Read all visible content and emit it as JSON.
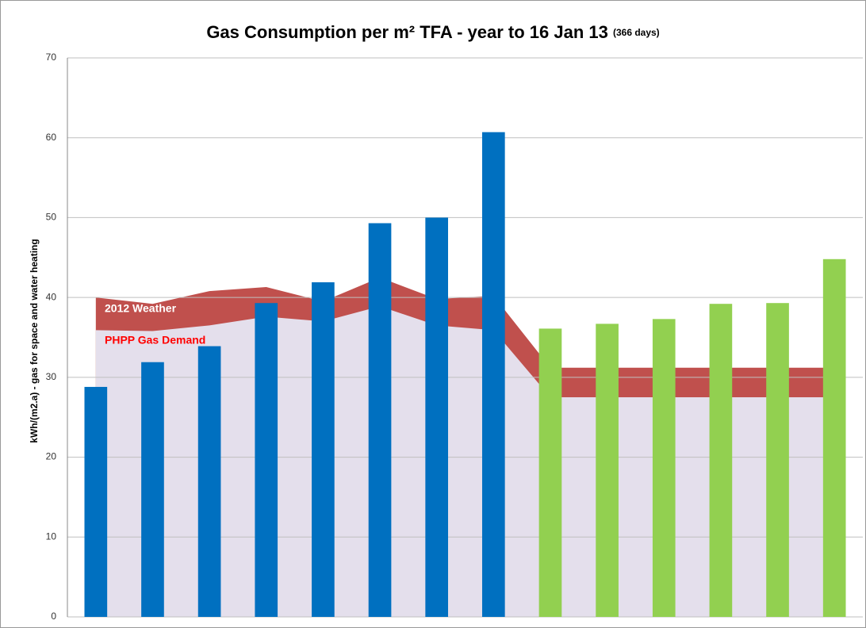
{
  "chart_data": {
    "type": "bar",
    "title": "Gas Consumption per m² TFA - year to 16 Jan 13",
    "subtitle": "(366 days)",
    "y_label": "kWh/(m2.a) - gas for space and water heating",
    "categories": [
      null,
      null,
      null,
      null,
      null,
      null,
      null,
      null,
      null,
      null,
      null,
      null,
      null,
      null
    ],
    "values": [
      28.8,
      31.9,
      33.9,
      39.3,
      41.9,
      49.3,
      50.0,
      60.7,
      36.1,
      36.7,
      37.3,
      39.2,
      39.3,
      44.8
    ],
    "colors": [
      "#0070c0",
      "#0070c0",
      "#0070c0",
      "#0070c0",
      "#0070c0",
      "#0070c0",
      "#0070c0",
      "#0070c0",
      "#92d050",
      "#92d050",
      "#92d050",
      "#92d050",
      "#92d050",
      "#92d050"
    ],
    "series": [
      {
        "name": "2012 Weather",
        "type": "area",
        "color": "#c0504d",
        "label_color": "#ffffff",
        "values": [
          40.0,
          39.2,
          40.8,
          41.3,
          39.5,
          42.5,
          39.8,
          40.2,
          31.2,
          31.2,
          31.2,
          31.2,
          31.2,
          31.2
        ]
      },
      {
        "name": "PHPP Gas Demand",
        "type": "area",
        "color": "#e4dfec",
        "label_color": "#ff0000",
        "values": [
          35.9,
          35.8,
          36.5,
          37.6,
          37.0,
          38.9,
          36.5,
          35.9,
          27.5,
          27.5,
          27.5,
          27.5,
          27.5,
          27.5
        ]
      }
    ],
    "ylim": [
      0,
      70
    ],
    "yticks": [
      0,
      10,
      20,
      30,
      40,
      50,
      60,
      70
    ],
    "grid": true
  }
}
